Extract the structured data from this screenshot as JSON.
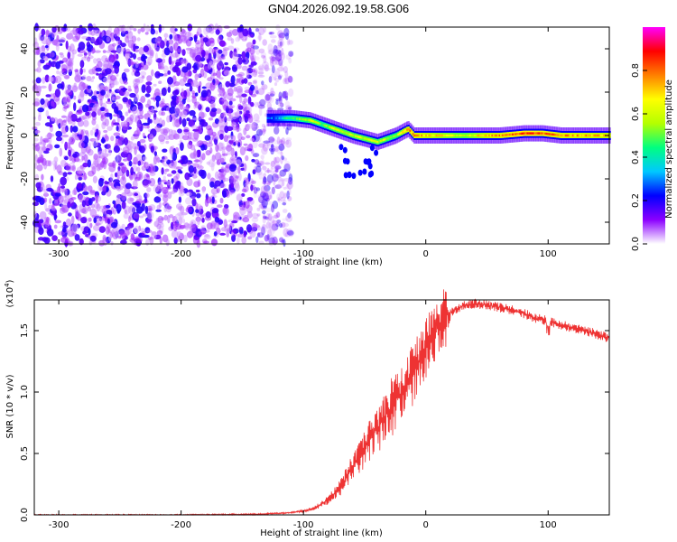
{
  "title": "GN04.2026.092.19.58.G06",
  "chart_data": [
    {
      "id": "spectrogram",
      "type": "heatmap",
      "xlabel": "Height of straight line (km)",
      "ylabel": "Frequency (Hz)",
      "xlim": [
        -320,
        150
      ],
      "ylim": [
        -50,
        50
      ],
      "xticks": [
        -300,
        -200,
        -100,
        0,
        100
      ],
      "yticks": [
        -40,
        -20,
        0,
        20,
        40
      ],
      "colorbar": {
        "label": "Normalized spectral amplitude",
        "range": [
          0,
          1
        ],
        "ticks": [
          "0.0",
          "0.2",
          "0.4",
          "0.6",
          "0.8"
        ],
        "colormap": [
          "#ffffff",
          "#8b00ff",
          "#0000ff",
          "#00c8ff",
          "#00ff80",
          "#b4ff00",
          "#ffff00",
          "#ff8000",
          "#ff0000",
          "#ff00ff"
        ]
      },
      "ridge": [
        {
          "x": -130,
          "y": 8,
          "a": 0.25
        },
        {
          "x": -110,
          "y": 8,
          "a": 0.45
        },
        {
          "x": -95,
          "y": 7,
          "a": 0.6
        },
        {
          "x": -85,
          "y": 5,
          "a": 0.5
        },
        {
          "x": -75,
          "y": 3,
          "a": 0.6
        },
        {
          "x": -60,
          "y": 0,
          "a": 0.6
        },
        {
          "x": -40,
          "y": -3,
          "a": 0.6
        },
        {
          "x": -25,
          "y": 0,
          "a": 0.55
        },
        {
          "x": -15,
          "y": 3,
          "a": 0.75
        },
        {
          "x": -10,
          "y": 0,
          "a": 0.75
        },
        {
          "x": 0,
          "y": 0,
          "a": 0.7
        },
        {
          "x": 30,
          "y": 0,
          "a": 0.6
        },
        {
          "x": 60,
          "y": 0,
          "a": 0.75
        },
        {
          "x": 80,
          "y": 1,
          "a": 0.85
        },
        {
          "x": 95,
          "y": 1,
          "a": 0.8
        },
        {
          "x": 110,
          "y": 0,
          "a": 0.75
        },
        {
          "x": 150,
          "y": 0,
          "a": 0.7
        }
      ]
    },
    {
      "id": "snr",
      "type": "line",
      "xlabel": "Height of straight line (km)",
      "ylabel": "SNR (10 * v/v)",
      "yscale_label": "(x10",
      "yscale_exp": "4",
      "yscale_close": ")",
      "xlim": [
        -320,
        150
      ],
      "ylim": [
        0,
        1.75
      ],
      "xticks": [
        -300,
        -200,
        -100,
        0,
        100
      ],
      "yticks": [
        "0.0",
        "0.5",
        "1.0",
        "1.5"
      ],
      "color": "#ee3333",
      "series": [
        {
          "name": "SNR",
          "x": [
            -320,
            -200,
            -140,
            -115,
            -100,
            -90,
            -80,
            -70,
            -60,
            -50,
            -40,
            -30,
            -20,
            -10,
            0,
            10,
            20,
            30,
            40,
            50,
            60,
            70,
            80,
            90,
            100,
            110,
            120,
            130,
            140,
            150
          ],
          "y": [
            0.0,
            0.0,
            0.005,
            0.015,
            0.03,
            0.06,
            0.12,
            0.22,
            0.38,
            0.55,
            0.7,
            0.85,
            1.0,
            1.15,
            1.35,
            1.55,
            1.65,
            1.7,
            1.72,
            1.71,
            1.69,
            1.67,
            1.64,
            1.6,
            1.58,
            1.55,
            1.52,
            1.5,
            1.47,
            1.44
          ]
        }
      ]
    }
  ]
}
